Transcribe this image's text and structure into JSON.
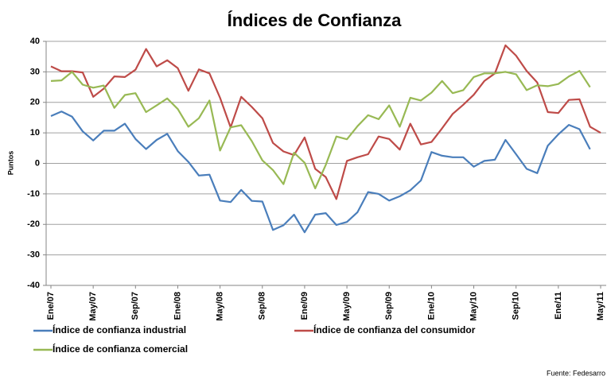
{
  "chart_data": {
    "type": "line",
    "title": "Índices de Confianza",
    "y_label": "Puntos",
    "source": "Fuente: Fedesarro",
    "categories": [
      "Ene/07",
      null,
      null,
      null,
      "May/07",
      null,
      null,
      null,
      "Sep/07",
      null,
      null,
      null,
      "Ene/08",
      null,
      null,
      null,
      "May/08",
      null,
      null,
      null,
      "Sep/08",
      null,
      null,
      null,
      "Ene/09",
      null,
      null,
      null,
      "May/09",
      null,
      null,
      null,
      "Sep/09",
      null,
      null,
      null,
      "Ene/10",
      null,
      null,
      null,
      "May/10",
      null,
      null,
      null,
      "Sep/10",
      null,
      null,
      null,
      "Ene/11",
      null,
      null,
      null,
      "May/11"
    ],
    "series": [
      {
        "name": "Índice de confianza industrial",
        "color": "#4a7ebb",
        "values": [
          15.5,
          17,
          15.3,
          10.5,
          7.5,
          10.7,
          10.7,
          13,
          8,
          4.7,
          7.7,
          9.7,
          4,
          0.5,
          -4,
          -3.7,
          -12.2,
          -12.7,
          -8.7,
          -12.3,
          -12.5,
          -21.8,
          -20.3,
          -16.8,
          -22.6,
          -16.8,
          -16.3,
          -20.2,
          -19.2,
          -16,
          -9.4,
          -10,
          -12.2,
          -10.8,
          -8.8,
          -5.6,
          3.7,
          2.5,
          2,
          2,
          -1.1,
          0.8,
          1.2,
          7.7,
          3,
          -1.8,
          -3.2,
          5.8,
          9.5,
          12.6,
          11.2,
          4.6,
          null
        ]
      },
      {
        "name": "Índice de confianza del consumidor",
        "color": "#be4b48",
        "values": [
          31.8,
          30.2,
          30.2,
          29.8,
          21.8,
          24.5,
          28.5,
          28.3,
          30.7,
          37.5,
          31.8,
          33.8,
          31.2,
          23.8,
          30.8,
          29.5,
          21.5,
          11.8,
          21.8,
          18.5,
          14.8,
          6.7,
          3.9,
          2.7,
          8.5,
          -1.8,
          -4.5,
          -11.7,
          0.8,
          2,
          3,
          8.8,
          8,
          4.5,
          13,
          6.2,
          7,
          11.5,
          16.2,
          19.2,
          22.5,
          27,
          29.5,
          38.7,
          35.3,
          30.3,
          26.5,
          16.8,
          16.5,
          20.8,
          21,
          12,
          10
        ]
      },
      {
        "name": "Índice de confianza comercial",
        "color": "#98b954",
        "values": [
          27,
          27.2,
          30,
          25.8,
          24.8,
          25.5,
          18.2,
          22.4,
          23,
          16.8,
          19,
          21.3,
          17.8,
          12,
          14.8,
          20.6,
          4.2,
          11.8,
          12.5,
          7.3,
          1,
          -2.2,
          -6.8,
          3.5,
          0.2,
          -8.2,
          -0.5,
          8.8,
          7.9,
          12.2,
          15.8,
          14.5,
          19,
          12,
          21.5,
          20.6,
          23.2,
          27,
          23,
          24,
          28.3,
          29.5,
          29.5,
          30,
          29.2,
          24,
          25.6,
          25.3,
          26,
          28.5,
          30.3,
          25,
          null
        ]
      }
    ],
    "ylim": [
      -40,
      40
    ],
    "yticks": [
      -40,
      -30,
      -20,
      -10,
      0,
      10,
      20,
      30,
      40
    ],
    "grid": true,
    "legend": "bottom"
  }
}
